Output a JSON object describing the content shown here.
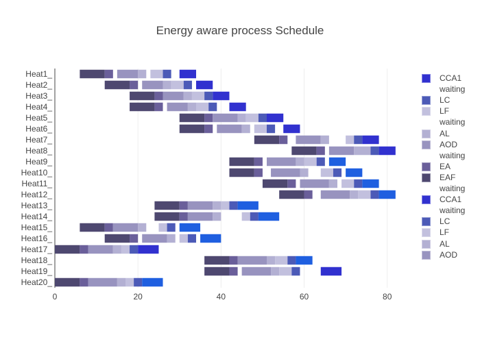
{
  "chart_data": {
    "type": "bar",
    "orientation": "horizontal",
    "stacked": false,
    "title": "Energy aware process Schedule",
    "xlabel": "",
    "ylabel": "",
    "xlim": [
      0,
      85
    ],
    "x_ticks": [
      0,
      20,
      40,
      60,
      80
    ],
    "grid": "vertical",
    "legend_position": "right",
    "categories": [
      "Heat1_",
      "Heat2_",
      "Heat3_",
      "Heat4_",
      "Heat5_",
      "Heat6_",
      "Heat7_",
      "Heat8_",
      "Heat9_",
      "Heat10_",
      "Heat11_",
      "Heat12_",
      "Heat13_",
      "Heat14_",
      "Heat15_",
      "Heat16_",
      "Heat17_",
      "Heat18_",
      "Heat19_",
      "Heat20_"
    ],
    "stages": {
      "EAF": {
        "color": "#4e4870"
      },
      "EA": {
        "color": "#6a5f9a"
      },
      "AOD waiting": {
        "color": "#b0accd"
      },
      "AOD": {
        "color": "#9893bf"
      },
      "AL": {
        "color": "#b3b0d3"
      },
      "LF waiting": {
        "color": "#c8c6e0"
      },
      "LF": {
        "color": "#c2c0de"
      },
      "LC": {
        "color": "#4c5ab7"
      },
      "CCA1 waiting": {
        "color": "#1f5fe0"
      },
      "CCA1": {
        "color": "#3131cf"
      }
    },
    "tasks": [
      {
        "heat": "Heat1_",
        "stage": "EAF",
        "start": 6,
        "end": 12
      },
      {
        "heat": "Heat1_",
        "stage": "EA",
        "start": 12,
        "end": 14
      },
      {
        "heat": "Heat1_",
        "stage": "AOD",
        "start": 15,
        "end": 20
      },
      {
        "heat": "Heat1_",
        "stage": "AL",
        "start": 20,
        "end": 22
      },
      {
        "heat": "Heat1_",
        "stage": "LF",
        "start": 23,
        "end": 26
      },
      {
        "heat": "Heat1_",
        "stage": "LC",
        "start": 26,
        "end": 28
      },
      {
        "heat": "Heat1_",
        "stage": "CCA1",
        "start": 30,
        "end": 34
      },
      {
        "heat": "Heat2_",
        "stage": "EAF",
        "start": 12,
        "end": 18
      },
      {
        "heat": "Heat2_",
        "stage": "EA",
        "start": 18,
        "end": 20
      },
      {
        "heat": "Heat2_",
        "stage": "AOD",
        "start": 21,
        "end": 26
      },
      {
        "heat": "Heat2_",
        "stage": "AL",
        "start": 26,
        "end": 28
      },
      {
        "heat": "Heat2_",
        "stage": "LF",
        "start": 28,
        "end": 31
      },
      {
        "heat": "Heat2_",
        "stage": "LC",
        "start": 31,
        "end": 33
      },
      {
        "heat": "Heat2_",
        "stage": "CCA1",
        "start": 34,
        "end": 38
      },
      {
        "heat": "Heat3_",
        "stage": "EAF",
        "start": 18,
        "end": 24
      },
      {
        "heat": "Heat3_",
        "stage": "EA",
        "start": 24,
        "end": 26
      },
      {
        "heat": "Heat3_",
        "stage": "AOD",
        "start": 26,
        "end": 31
      },
      {
        "heat": "Heat3_",
        "stage": "AL",
        "start": 31,
        "end": 33
      },
      {
        "heat": "Heat3_",
        "stage": "LF",
        "start": 33,
        "end": 36
      },
      {
        "heat": "Heat3_",
        "stage": "LC",
        "start": 36,
        "end": 38
      },
      {
        "heat": "Heat3_",
        "stage": "CCA1",
        "start": 38,
        "end": 42
      },
      {
        "heat": "Heat4_",
        "stage": "EAF",
        "start": 18,
        "end": 24
      },
      {
        "heat": "Heat4_",
        "stage": "EA",
        "start": 24,
        "end": 26
      },
      {
        "heat": "Heat4_",
        "stage": "AOD",
        "start": 27,
        "end": 32
      },
      {
        "heat": "Heat4_",
        "stage": "AL",
        "start": 32,
        "end": 34
      },
      {
        "heat": "Heat4_",
        "stage": "LF",
        "start": 34,
        "end": 37
      },
      {
        "heat": "Heat4_",
        "stage": "LC",
        "start": 37,
        "end": 39
      },
      {
        "heat": "Heat4_",
        "stage": "CCA1",
        "start": 42,
        "end": 46
      },
      {
        "heat": "Heat5_",
        "stage": "EAF",
        "start": 30,
        "end": 36
      },
      {
        "heat": "Heat5_",
        "stage": "EA",
        "start": 36,
        "end": 38
      },
      {
        "heat": "Heat5_",
        "stage": "AOD",
        "start": 38,
        "end": 44
      },
      {
        "heat": "Heat5_",
        "stage": "AL",
        "start": 44,
        "end": 46
      },
      {
        "heat": "Heat5_",
        "stage": "LF",
        "start": 46,
        "end": 49
      },
      {
        "heat": "Heat5_",
        "stage": "LC",
        "start": 49,
        "end": 51
      },
      {
        "heat": "Heat5_",
        "stage": "CCA1",
        "start": 51,
        "end": 55
      },
      {
        "heat": "Heat6_",
        "stage": "EAF",
        "start": 30,
        "end": 36
      },
      {
        "heat": "Heat6_",
        "stage": "EA",
        "start": 36,
        "end": 38
      },
      {
        "heat": "Heat6_",
        "stage": "AOD",
        "start": 39,
        "end": 45
      },
      {
        "heat": "Heat6_",
        "stage": "AL",
        "start": 45,
        "end": 47
      },
      {
        "heat": "Heat6_",
        "stage": "LF",
        "start": 48,
        "end": 51
      },
      {
        "heat": "Heat6_",
        "stage": "LC",
        "start": 51,
        "end": 53
      },
      {
        "heat": "Heat6_",
        "stage": "CCA1",
        "start": 55,
        "end": 59
      },
      {
        "heat": "Heat7_",
        "stage": "EAF",
        "start": 48,
        "end": 54
      },
      {
        "heat": "Heat7_",
        "stage": "EA",
        "start": 54,
        "end": 56
      },
      {
        "heat": "Heat7_",
        "stage": "AOD",
        "start": 58,
        "end": 64
      },
      {
        "heat": "Heat7_",
        "stage": "AL",
        "start": 64,
        "end": 66
      },
      {
        "heat": "Heat7_",
        "stage": "LF",
        "start": 70,
        "end": 72
      },
      {
        "heat": "Heat7_",
        "stage": "LC",
        "start": 72,
        "end": 74
      },
      {
        "heat": "Heat7_",
        "stage": "CCA1",
        "start": 74,
        "end": 78
      },
      {
        "heat": "Heat8_",
        "stage": "EAF",
        "start": 57,
        "end": 63
      },
      {
        "heat": "Heat8_",
        "stage": "EA",
        "start": 63,
        "end": 65
      },
      {
        "heat": "Heat8_",
        "stage": "AOD",
        "start": 66,
        "end": 72
      },
      {
        "heat": "Heat8_",
        "stage": "AL",
        "start": 72,
        "end": 76
      },
      {
        "heat": "Heat8_",
        "stage": "LC",
        "start": 76,
        "end": 78
      },
      {
        "heat": "Heat8_",
        "stage": "CCA1",
        "start": 78,
        "end": 82
      },
      {
        "heat": "Heat9_",
        "stage": "EAF",
        "start": 42,
        "end": 48
      },
      {
        "heat": "Heat9_",
        "stage": "EA",
        "start": 48,
        "end": 50
      },
      {
        "heat": "Heat9_",
        "stage": "AOD",
        "start": 51,
        "end": 58
      },
      {
        "heat": "Heat9_",
        "stage": "AL",
        "start": 58,
        "end": 60
      },
      {
        "heat": "Heat9_",
        "stage": "LF",
        "start": 60,
        "end": 63
      },
      {
        "heat": "Heat9_",
        "stage": "LC",
        "start": 63,
        "end": 65
      },
      {
        "heat": "Heat9_",
        "stage": "CCA1 waiting",
        "start": 66,
        "end": 70
      },
      {
        "heat": "Heat10_",
        "stage": "EAF",
        "start": 42,
        "end": 48
      },
      {
        "heat": "Heat10_",
        "stage": "EA",
        "start": 48,
        "end": 50
      },
      {
        "heat": "Heat10_",
        "stage": "AOD",
        "start": 52,
        "end": 59
      },
      {
        "heat": "Heat10_",
        "stage": "AL",
        "start": 59,
        "end": 61
      },
      {
        "heat": "Heat10_",
        "stage": "LF",
        "start": 64,
        "end": 67
      },
      {
        "heat": "Heat10_",
        "stage": "LC",
        "start": 67,
        "end": 69
      },
      {
        "heat": "Heat10_",
        "stage": "CCA1 waiting",
        "start": 70,
        "end": 74
      },
      {
        "heat": "Heat11_",
        "stage": "EAF",
        "start": 50,
        "end": 56
      },
      {
        "heat": "Heat11_",
        "stage": "EA",
        "start": 56,
        "end": 58
      },
      {
        "heat": "Heat11_",
        "stage": "AOD",
        "start": 59,
        "end": 66
      },
      {
        "heat": "Heat11_",
        "stage": "AL",
        "start": 66,
        "end": 68
      },
      {
        "heat": "Heat11_",
        "stage": "LF",
        "start": 69,
        "end": 72
      },
      {
        "heat": "Heat11_",
        "stage": "LC",
        "start": 72,
        "end": 74
      },
      {
        "heat": "Heat11_",
        "stage": "CCA1 waiting",
        "start": 74,
        "end": 78
      },
      {
        "heat": "Heat12_",
        "stage": "EAF",
        "start": 54,
        "end": 60
      },
      {
        "heat": "Heat12_",
        "stage": "EA",
        "start": 60,
        "end": 62
      },
      {
        "heat": "Heat12_",
        "stage": "AOD",
        "start": 64,
        "end": 71
      },
      {
        "heat": "Heat12_",
        "stage": "AL",
        "start": 71,
        "end": 73
      },
      {
        "heat": "Heat12_",
        "stage": "LF",
        "start": 73,
        "end": 76
      },
      {
        "heat": "Heat12_",
        "stage": "LC",
        "start": 76,
        "end": 78
      },
      {
        "heat": "Heat12_",
        "stage": "CCA1 waiting",
        "start": 78,
        "end": 82
      },
      {
        "heat": "Heat13_",
        "stage": "EAF",
        "start": 24,
        "end": 30
      },
      {
        "heat": "Heat13_",
        "stage": "EA",
        "start": 30,
        "end": 32
      },
      {
        "heat": "Heat13_",
        "stage": "AOD",
        "start": 32,
        "end": 38
      },
      {
        "heat": "Heat13_",
        "stage": "AL",
        "start": 38,
        "end": 40
      },
      {
        "heat": "Heat13_",
        "stage": "LF",
        "start": 40,
        "end": 42
      },
      {
        "heat": "Heat13_",
        "stage": "LC",
        "start": 42,
        "end": 44
      },
      {
        "heat": "Heat13_",
        "stage": "CCA1 waiting",
        "start": 44,
        "end": 49
      },
      {
        "heat": "Heat14_",
        "stage": "EAF",
        "start": 24,
        "end": 30
      },
      {
        "heat": "Heat14_",
        "stage": "EA",
        "start": 30,
        "end": 32
      },
      {
        "heat": "Heat14_",
        "stage": "AOD",
        "start": 32,
        "end": 38
      },
      {
        "heat": "Heat14_",
        "stage": "AL",
        "start": 38,
        "end": 40
      },
      {
        "heat": "Heat14_",
        "stage": "LF",
        "start": 45,
        "end": 47
      },
      {
        "heat": "Heat14_",
        "stage": "LC",
        "start": 47,
        "end": 49
      },
      {
        "heat": "Heat14_",
        "stage": "CCA1 waiting",
        "start": 49,
        "end": 54
      },
      {
        "heat": "Heat15_",
        "stage": "EAF",
        "start": 6,
        "end": 12
      },
      {
        "heat": "Heat15_",
        "stage": "EA",
        "start": 12,
        "end": 14
      },
      {
        "heat": "Heat15_",
        "stage": "AOD",
        "start": 14,
        "end": 20
      },
      {
        "heat": "Heat15_",
        "stage": "AL",
        "start": 20,
        "end": 22
      },
      {
        "heat": "Heat15_",
        "stage": "LF",
        "start": 25,
        "end": 27
      },
      {
        "heat": "Heat15_",
        "stage": "LC",
        "start": 27,
        "end": 29
      },
      {
        "heat": "Heat15_",
        "stage": "CCA1 waiting",
        "start": 30,
        "end": 35
      },
      {
        "heat": "Heat16_",
        "stage": "EAF",
        "start": 12,
        "end": 18
      },
      {
        "heat": "Heat16_",
        "stage": "EA",
        "start": 18,
        "end": 20
      },
      {
        "heat": "Heat16_",
        "stage": "AOD",
        "start": 21,
        "end": 27
      },
      {
        "heat": "Heat16_",
        "stage": "AL",
        "start": 27,
        "end": 29
      },
      {
        "heat": "Heat16_",
        "stage": "LF",
        "start": 30,
        "end": 32
      },
      {
        "heat": "Heat16_",
        "stage": "LC",
        "start": 32,
        "end": 34
      },
      {
        "heat": "Heat16_",
        "stage": "CCA1 waiting",
        "start": 35,
        "end": 40
      },
      {
        "heat": "Heat17_",
        "stage": "EAF",
        "start": 0,
        "end": 6
      },
      {
        "heat": "Heat17_",
        "stage": "EA",
        "start": 6,
        "end": 8
      },
      {
        "heat": "Heat17_",
        "stage": "AOD",
        "start": 8,
        "end": 14
      },
      {
        "heat": "Heat17_",
        "stage": "AL",
        "start": 14,
        "end": 16
      },
      {
        "heat": "Heat17_",
        "stage": "LF",
        "start": 16,
        "end": 18
      },
      {
        "heat": "Heat17_",
        "stage": "LC",
        "start": 18,
        "end": 20
      },
      {
        "heat": "Heat17_",
        "stage": "CCA1",
        "start": 20,
        "end": 25
      },
      {
        "heat": "Heat18_",
        "stage": "EAF",
        "start": 36,
        "end": 42
      },
      {
        "heat": "Heat18_",
        "stage": "EA",
        "start": 42,
        "end": 44
      },
      {
        "heat": "Heat18_",
        "stage": "AOD",
        "start": 44,
        "end": 51
      },
      {
        "heat": "Heat18_",
        "stage": "AL",
        "start": 51,
        "end": 53
      },
      {
        "heat": "Heat18_",
        "stage": "LF",
        "start": 53,
        "end": 56
      },
      {
        "heat": "Heat18_",
        "stage": "LC",
        "start": 56,
        "end": 58
      },
      {
        "heat": "Heat18_",
        "stage": "CCA1 waiting",
        "start": 58,
        "end": 62
      },
      {
        "heat": "Heat19_",
        "stage": "EAF",
        "start": 36,
        "end": 42
      },
      {
        "heat": "Heat19_",
        "stage": "EA",
        "start": 42,
        "end": 44
      },
      {
        "heat": "Heat19_",
        "stage": "AOD",
        "start": 45,
        "end": 52
      },
      {
        "heat": "Heat19_",
        "stage": "AL",
        "start": 52,
        "end": 54
      },
      {
        "heat": "Heat19_",
        "stage": "LF",
        "start": 54,
        "end": 57
      },
      {
        "heat": "Heat19_",
        "stage": "LC",
        "start": 57,
        "end": 59
      },
      {
        "heat": "Heat19_",
        "stage": "CCA1",
        "start": 64,
        "end": 69
      },
      {
        "heat": "Heat20_",
        "stage": "EAF",
        "start": 0,
        "end": 6
      },
      {
        "heat": "Heat20_",
        "stage": "EA",
        "start": 6,
        "end": 8
      },
      {
        "heat": "Heat20_",
        "stage": "AOD",
        "start": 8,
        "end": 15
      },
      {
        "heat": "Heat20_",
        "stage": "AL",
        "start": 15,
        "end": 17
      },
      {
        "heat": "Heat20_",
        "stage": "LF",
        "start": 17,
        "end": 19
      },
      {
        "heat": "Heat20_",
        "stage": "LC",
        "start": 19,
        "end": 21
      },
      {
        "heat": "Heat20_",
        "stage": "CCA1 waiting",
        "start": 21,
        "end": 26
      }
    ],
    "legend": [
      {
        "label": "CCA1",
        "color": "#3131cf",
        "swatch": true
      },
      {
        "label": "waiting",
        "swatch": false
      },
      {
        "label": "LC",
        "color": "#4c5ab7",
        "swatch": true
      },
      {
        "label": "LF",
        "color": "#c2c0de",
        "swatch": true
      },
      {
        "label": "waiting",
        "swatch": false
      },
      {
        "label": "AL",
        "color": "#b3b0d3",
        "swatch": true
      },
      {
        "label": "AOD",
        "color": "#9893bf",
        "swatch": true
      },
      {
        "label": "waiting",
        "swatch": false
      },
      {
        "label": "EA",
        "color": "#6a5f9a",
        "swatch": true
      },
      {
        "label": "EAF",
        "color": "#4e4870",
        "swatch": true
      },
      {
        "label": "waiting",
        "swatch": false
      },
      {
        "label": "CCA1",
        "color": "#3131cf",
        "swatch": true
      },
      {
        "label": "waiting",
        "swatch": false
      },
      {
        "label": "LC",
        "color": "#4c5ab7",
        "swatch": true
      },
      {
        "label": "LF",
        "color": "#c2c0de",
        "swatch": true
      },
      {
        "label": "AL",
        "color": "#b3b0d3",
        "swatch": true
      },
      {
        "label": "AOD",
        "color": "#9893bf",
        "swatch": true
      }
    ]
  }
}
